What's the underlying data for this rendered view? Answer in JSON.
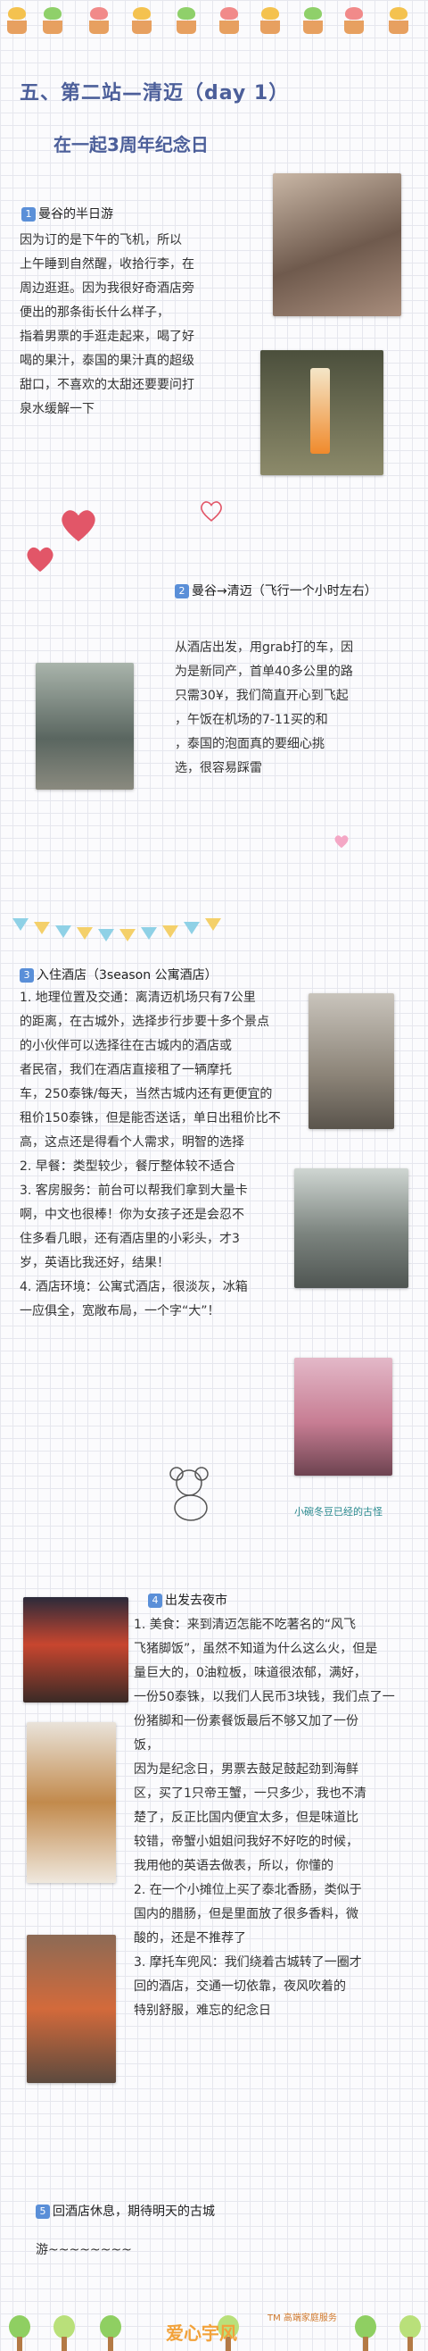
{
  "header": {
    "title": "五、第二站—清迈（day 1）",
    "subtitle": "在一起3周年纪念日"
  },
  "sections": [
    {
      "id": "1",
      "heading": "曼谷的半日游",
      "lines": [
        "因为订的是下午的飞机，所以",
        "上午睡到自然醒，收拾行李，在",
        "周边逛逛。因为我很好奇酒店旁",
        "便出的那条街长什么样子，",
        "指着男票的手逛走起来，喝了好",
        "喝的果汁，泰国的果汁真的超级",
        "甜口，不喜欢的太甜还要要问打",
        "泉水缓解一下"
      ]
    },
    {
      "id": "2",
      "heading": "曼谷→清迈（飞行一个小时左右）",
      "lines": [
        "从酒店出发，用grab打的车，因",
        "为是新同产，首单40多公里的路",
        "只需30¥，我们简直开心到飞起",
        "，午饭在机场的7-11买的和",
        "，泰国的泡面真的要细心挑",
        "选，很容易踩雷"
      ]
    },
    {
      "id": "3",
      "heading": "入住酒店（3season 公寓酒店）",
      "lines": [
        "1. 地理位置及交通：离清迈机场只有7公里",
        "的距离，在古城外，选择步行步要十多个景点",
        "的小伙伴可以选择往在古城内的酒店或",
        "者民宿，我们在酒店直接租了一辆摩托",
        "车，250泰铢/每天，当然古城内还有更便宜的",
        "租价150泰铢，但是能否送话，单日出租价比不",
        "高，这点还是得看个人需求，明智的选择",
        "2. 早餐：类型较少，餐厅整体较不适合",
        "3. 客房服务：前台可以帮我们拿到大量卡",
        "啊，中文也很棒！你为女孩子还是会忍不",
        "住多看几眼，还有酒店里的小彩头，才3",
        "岁，英语比我还好，结果！",
        "4. 酒店环境：公寓式酒店，很淡灰，冰箱",
        "一应俱全，宽敞布局，一个字“大”！"
      ],
      "caption": "小碗冬豆已经的古怪"
    },
    {
      "id": "4",
      "heading": "出发去夜市",
      "lines": [
        "1. 美食：来到清迈怎能不吃著名的“风飞",
        "飞猪脚饭”，虽然不知道为什么这么火，但是",
        "量巨大的，0油粒板，味道很浓郁，满好，",
        "一份50泰铢，以我们人民币3块钱，我们点了一",
        "份猪脚和一份素餐饭最后不够又加了一份",
        "饭，",
        "因为是纪念日，男票去鼓足鼓起劲到海鲜",
        "区，买了1只帝王蟹，一只多少，我也不清",
        "楚了，反正比国内便宜太多，但是味道比",
        "较错，帝蟹小姐姐问我好不好吃的时候，",
        "我用他的英语去做表，所以，你懂的",
        "2. 在一个小摊位上买了泰北香肠，类似于",
        "国内的腊肠，但是里面放了很多香料，微",
        "酸的，还是不推荐了",
        "3. 摩托车兜风：我们绕着古城转了一圈才",
        "回的酒店，交通一切依靠，夜风吹着的",
        "特别舒服，难忘的纪念日"
      ]
    },
    {
      "id": "5",
      "heading": "回酒店休息，期待明天的古城",
      "lines": [
        "游~~~~~~~~"
      ]
    }
  ],
  "footer": {
    "brand_cn": "爱心宇风",
    "tagline": "TM 高端家庭服务"
  },
  "colors": {
    "title": "#4c5f9a",
    "badge": "#5a8fd8",
    "heart": "#e25668",
    "caption": "#2b8a8f"
  }
}
